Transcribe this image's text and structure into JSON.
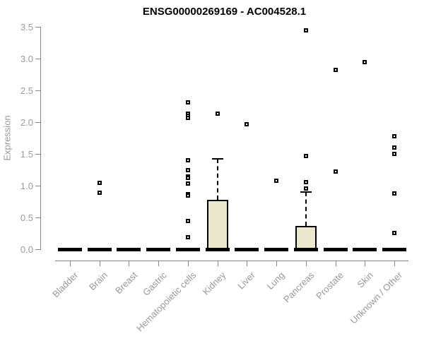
{
  "chart_data": {
    "type": "boxplot",
    "title": "ENSG00000269169 - AC004528.1",
    "xlabel": "",
    "ylabel": "Expression",
    "ylim": [
      0.0,
      3.5
    ],
    "yticks": [
      0.0,
      0.5,
      1.0,
      1.5,
      2.0,
      2.5,
      3.0,
      3.5
    ],
    "grid": false,
    "legend": "none",
    "colors": {
      "box_fill": "#ece8cd",
      "box_border": "#000000",
      "outlier_border": "#000000",
      "axis_line": "#85858d",
      "tick_label": "#9b9ba3",
      "category_label": "#97979f",
      "title": "#000000",
      "background": "#ffffff"
    },
    "categories": [
      "Bladder",
      "Brain",
      "Breast",
      "Gastric",
      "Hematopoietic cells",
      "Kidney",
      "Liver",
      "Lung",
      "Pancreas",
      "Prostate",
      "Skin",
      "Unknown / Other"
    ],
    "series": [
      {
        "label": "Bladder",
        "median": 0,
        "q1": 0,
        "q3": 0,
        "whisker_low": 0,
        "whisker_high": 0,
        "outliers": []
      },
      {
        "label": "Brain",
        "median": 0,
        "q1": 0,
        "q3": 0,
        "whisker_low": 0,
        "whisker_high": 0,
        "outliers": [
          1.04,
          0.89
        ]
      },
      {
        "label": "Breast",
        "median": 0,
        "q1": 0,
        "q3": 0,
        "whisker_low": 0,
        "whisker_high": 0,
        "outliers": []
      },
      {
        "label": "Gastric",
        "median": 0,
        "q1": 0,
        "q3": 0,
        "whisker_low": 0,
        "whisker_high": 0,
        "outliers": []
      },
      {
        "label": "Hematopoietic cells",
        "median": 0,
        "q1": 0,
        "q3": 0,
        "whisker_low": 0,
        "whisker_high": 0,
        "outliers": [
          2.31,
          2.13,
          2.1,
          2.07,
          1.4,
          1.24,
          1.15,
          1.12,
          1.03,
          0.87,
          0.84,
          0.44,
          0.19
        ]
      },
      {
        "label": "Kidney",
        "median": 0,
        "q1": 0,
        "q3": 0.78,
        "whisker_low": 0,
        "whisker_high": 1.42,
        "outliers": [
          2.13
        ]
      },
      {
        "label": "Liver",
        "median": 0,
        "q1": 0,
        "q3": 0,
        "whisker_low": 0,
        "whisker_high": 0,
        "outliers": [
          1.97
        ]
      },
      {
        "label": "Lung",
        "median": 0,
        "q1": 0,
        "q3": 0,
        "whisker_low": 0,
        "whisker_high": 0,
        "outliers": [
          1.08
        ]
      },
      {
        "label": "Pancreas",
        "median": 0,
        "q1": 0,
        "q3": 0.37,
        "whisker_low": 0,
        "whisker_high": 0.9,
        "outliers": [
          3.44,
          1.47,
          1.06,
          0.96
        ]
      },
      {
        "label": "Prostate",
        "median": 0,
        "q1": 0,
        "q3": 0,
        "whisker_low": 0,
        "whisker_high": 0,
        "outliers": [
          2.82,
          1.22
        ]
      },
      {
        "label": "Skin",
        "median": 0,
        "q1": 0,
        "q3": 0,
        "whisker_low": 0,
        "whisker_high": 0,
        "outliers": [
          2.94
        ]
      },
      {
        "label": "Unknown / Other",
        "median": 0,
        "q1": 0,
        "q3": 0,
        "whisker_low": 0,
        "whisker_high": 0,
        "outliers": [
          1.78,
          1.6,
          1.5,
          0.88,
          0.26
        ]
      }
    ]
  }
}
